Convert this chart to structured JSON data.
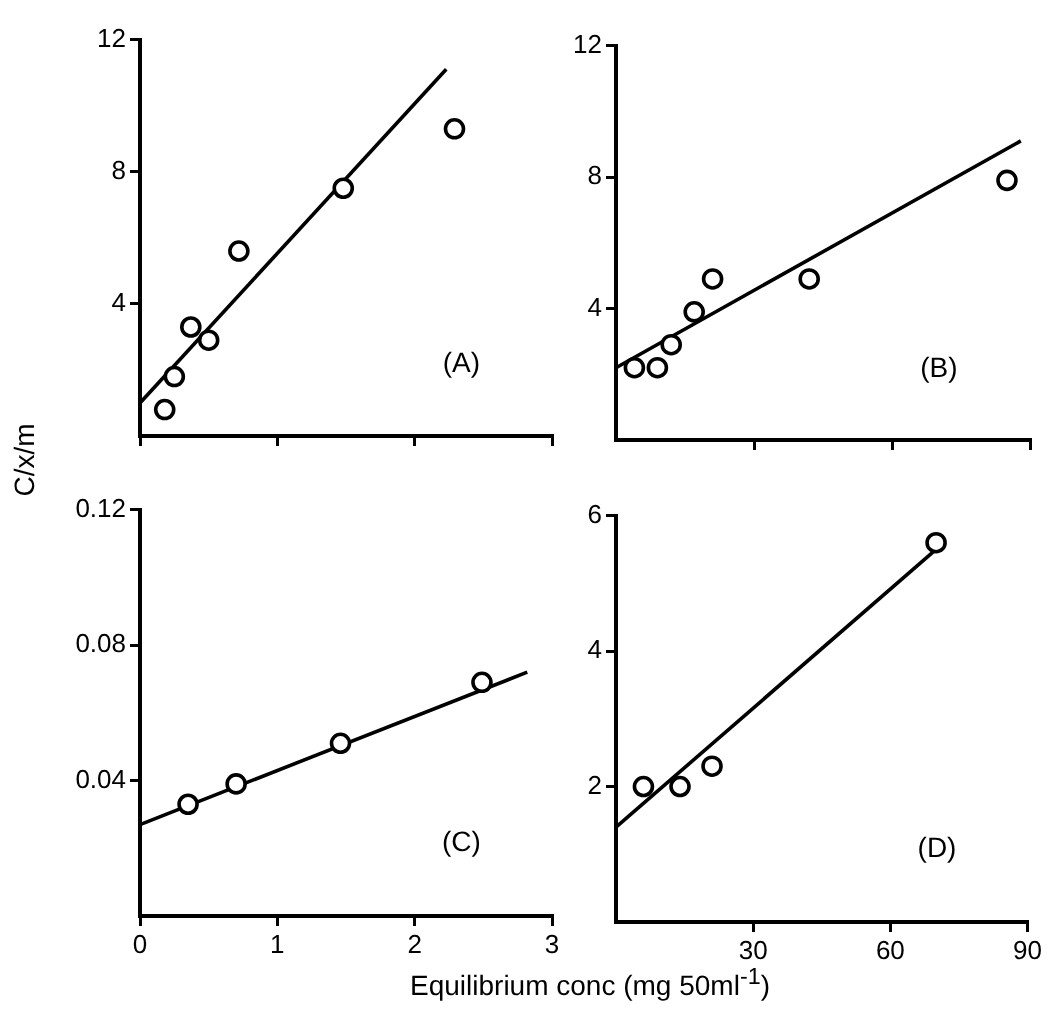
{
  "chart_data": [
    {
      "type": "scatter",
      "ylabel": "C/x/m",
      "annotations": [
        "(A)"
      ],
      "xlim": [
        0,
        3
      ],
      "xticks": [
        0,
        1,
        2,
        3
      ],
      "ylim": [
        0,
        12
      ],
      "yticks": [
        4,
        8,
        12
      ],
      "tick_labels": "y",
      "grid": false,
      "legend": false,
      "series": [
        {
          "type": "scatter",
          "marker": "circle",
          "color": "#000000",
          "x": [
            0.18,
            0.25,
            0.37,
            0.5,
            0.72,
            1.48,
            2.29
          ],
          "values": [
            0.8,
            1.8,
            3.3,
            2.9,
            5.6,
            7.5,
            9.3
          ]
        },
        {
          "type": "line",
          "marker": "none",
          "color": "#000000",
          "x": [
            0,
            2.23
          ],
          "values": [
            1,
            11.1
          ]
        }
      ]
    },
    {
      "type": "scatter",
      "annotations": [
        "(B)"
      ],
      "xlim": [
        0,
        90
      ],
      "xticks": [
        30,
        60,
        90
      ],
      "ylim": [
        0,
        12
      ],
      "yticks": [
        4,
        8,
        12
      ],
      "tick_labels": "y",
      "grid": false,
      "legend": false,
      "series": [
        {
          "type": "scatter",
          "marker": "circle",
          "color": "#000000",
          "x": [
            4,
            9,
            12,
            17,
            21,
            42,
            85
          ],
          "values": [
            2.2,
            2.2,
            2.9,
            3.9,
            4.9,
            4.9,
            7.9
          ]
        },
        {
          "type": "line",
          "marker": "none",
          "color": "#000000",
          "x": [
            0,
            88
          ],
          "values": [
            2.2,
            9.1
          ]
        }
      ]
    },
    {
      "type": "scatter",
      "xlabel": "Equilibrium conc (mg 50ml$^{-1}$)",
      "annotations": [
        "(C)"
      ],
      "xlim": [
        0,
        3
      ],
      "xticks": [
        0,
        1,
        2,
        3
      ],
      "ylim": [
        0,
        0.12
      ],
      "yticks": [
        0.04,
        0.08,
        0.12
      ],
      "grid": false,
      "legend": false,
      "series": [
        {
          "type": "scatter",
          "marker": "circle",
          "color": "#000000",
          "x": [
            0.35,
            0.7,
            1.46,
            2.49
          ],
          "values": [
            0.033,
            0.039,
            0.051,
            0.069
          ]
        },
        {
          "type": "line",
          "marker": "none",
          "color": "#000000",
          "x": [
            0,
            2.82
          ],
          "values": [
            0.027,
            0.072
          ]
        }
      ]
    },
    {
      "type": "scatter",
      "annotations": [
        "(D)"
      ],
      "xlim": [
        0,
        90
      ],
      "xticks": [
        30,
        60,
        90
      ],
      "ylim": [
        0,
        6
      ],
      "yticks": [
        2,
        4,
        6
      ],
      "grid": false,
      "legend": false,
      "series": [
        {
          "type": "scatter",
          "marker": "circle",
          "color": "#000000",
          "x": [
            6,
            14,
            21,
            70
          ],
          "values": [
            2,
            2,
            2.3,
            5.6
          ]
        },
        {
          "type": "line",
          "marker": "none",
          "color": "#000000",
          "x": [
            0,
            70
          ],
          "values": [
            1.4,
            5.5
          ]
        }
      ]
    }
  ]
}
